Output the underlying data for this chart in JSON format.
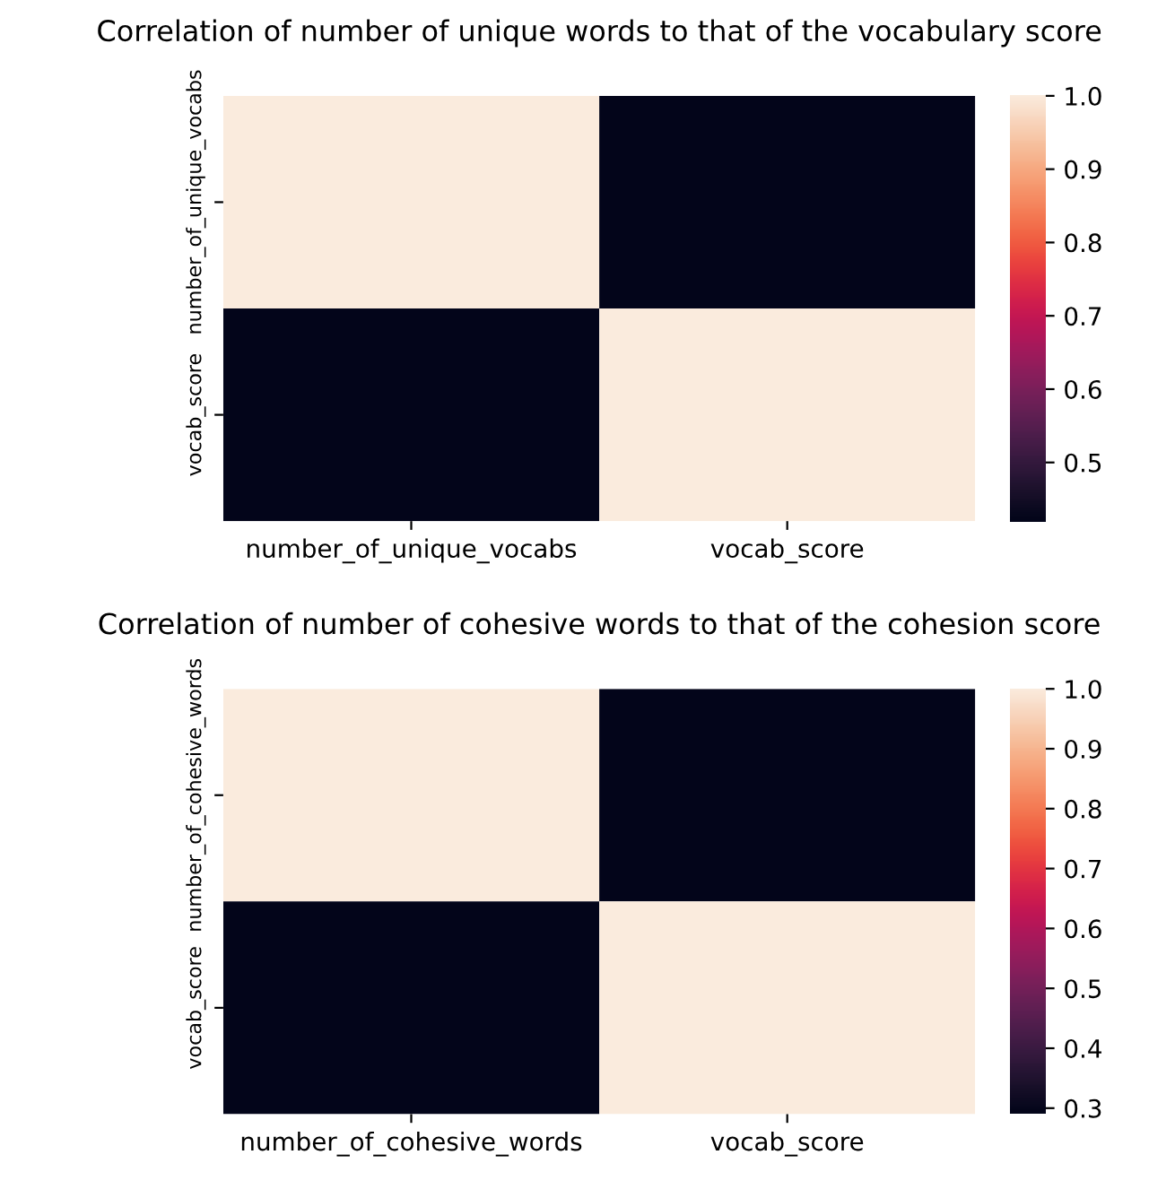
{
  "chart_data": [
    {
      "type": "heatmap",
      "title": "Correlation of number of unique words to that of the vocabulary score",
      "categories": [
        "number_of_unique_vocabs",
        "vocab_score"
      ],
      "y_categories": [
        "number_of_unique_vocabs",
        "vocab_score"
      ],
      "cells": [
        [
          1.0,
          0.42
        ],
        [
          0.42,
          1.0
        ]
      ],
      "clim": [
        0.42,
        1.0
      ],
      "cticks": [
        0.5,
        0.6,
        0.7,
        0.8,
        0.9,
        {
          "value": 1.0,
          "label": "1.0"
        }
      ]
    },
    {
      "type": "heatmap",
      "title": "Correlation of number of cohesive words to that of the cohesion score",
      "categories": [
        "number_of_cohesive_words",
        "vocab_score"
      ],
      "y_categories": [
        "number_of_cohesive_words",
        "vocab_score"
      ],
      "cells": [
        [
          1.0,
          0.29
        ],
        [
          0.29,
          1.0
        ]
      ],
      "clim": [
        0.29,
        1.0
      ],
      "cticks": [
        0.3,
        0.4,
        0.5,
        0.6,
        0.7,
        0.8,
        0.9,
        {
          "value": 1.0,
          "label": "1.0"
        }
      ]
    }
  ]
}
